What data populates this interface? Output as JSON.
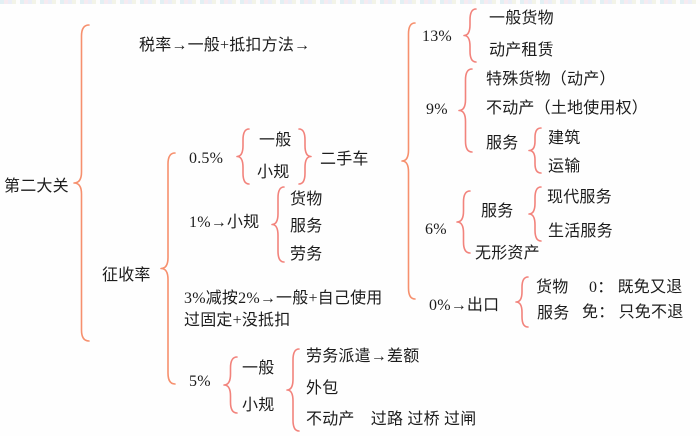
{
  "colors": {
    "brace_primary": "#f6906e",
    "brace_secondary": "#f2837c",
    "text": "#1c1c1c"
  },
  "root_label": "第二大关",
  "tax": {
    "label": "税率→一般+抵扣方法→",
    "r13": {
      "rate": "13%",
      "item1": "一般货物",
      "item2": "动产租赁"
    },
    "r9": {
      "rate": "9%",
      "item1": "特殊货物（动产）",
      "item2": "不动产（土地使用权）",
      "service_label": "服务",
      "service1": "建筑",
      "service2": "运输"
    },
    "r6": {
      "rate": "6%",
      "service_label": "服务",
      "service1": "现代服务",
      "service2": "生活服务",
      "item2": "无形资产"
    },
    "r0": {
      "rate": "0%→出口",
      "item1": "货物",
      "item2": "服务",
      "note1": "0： 既免又退",
      "note2": "免： 只免不退"
    }
  },
  "levy": {
    "label": "征收率",
    "r05": {
      "rate": "0.5%",
      "item1": "一般",
      "item2": "小规",
      "result": "二手车"
    },
    "r1": {
      "rate": "1%→小规",
      "item1": "货物",
      "item2": "服务",
      "item3": "劳务"
    },
    "r3": {
      "line1": "3%减按2%→一般+自己使用",
      "line2": "过固定+没抵扣"
    },
    "r5": {
      "rate": "5%",
      "item1": "一般",
      "item2": "小规",
      "sub1": "劳务派遣→差额",
      "sub2": "外包",
      "sub3": "不动产　过路 过桥 过闸"
    }
  }
}
